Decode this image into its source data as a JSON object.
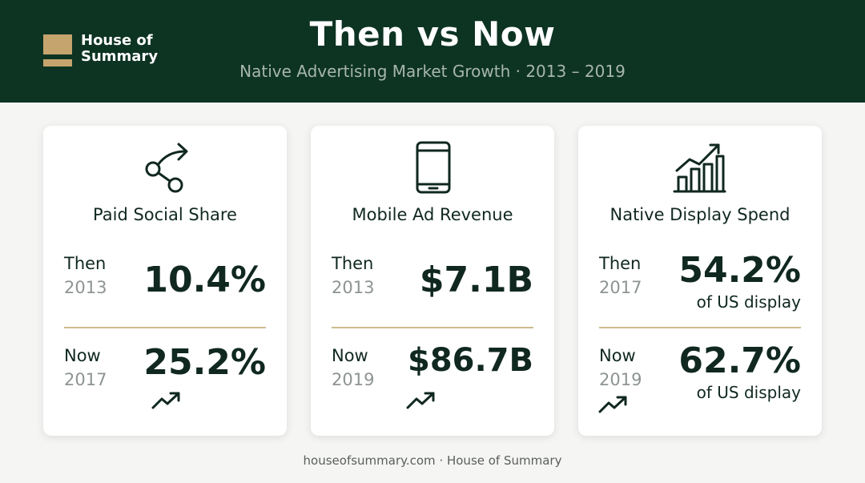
{
  "brand": {
    "name": "House of Summary",
    "line1": "House of",
    "line2": "Summary"
  },
  "header": {
    "title": "Then vs Now",
    "subtitle": "Native Advertising Market Growth · 2013 – 2019"
  },
  "cards": [
    {
      "icon": "share-icon",
      "title": "Paid Social Share",
      "then": {
        "label": "Then",
        "year": "2013",
        "value": "10.4%",
        "note": ""
      },
      "now": {
        "label": "Now",
        "year": "2017",
        "value": "25.2%",
        "note": ""
      }
    },
    {
      "icon": "smartphone-icon",
      "title": "Mobile Ad Revenue",
      "then": {
        "label": "Then",
        "year": "2013",
        "value": "$7.1B",
        "note": ""
      },
      "now": {
        "label": "Now",
        "year": "2019",
        "value": "$86.7B",
        "note": ""
      }
    },
    {
      "icon": "bar-chart-growth-icon",
      "title": "Native Display Spend",
      "then": {
        "label": "Then",
        "year": "2017",
        "value": "54.2%",
        "note": "of US display"
      },
      "now": {
        "label": "Now",
        "year": "2019",
        "value": "62.7%",
        "note": "of US display"
      }
    }
  ],
  "footer": {
    "text": "houseofsummary.com · House of Summary"
  },
  "colors": {
    "header_bg": "#0d3323",
    "accent_gold": "#c5a56d",
    "divider": "#cdbb8f",
    "text_dark": "#10281f",
    "text_muted": "#8d9492"
  }
}
